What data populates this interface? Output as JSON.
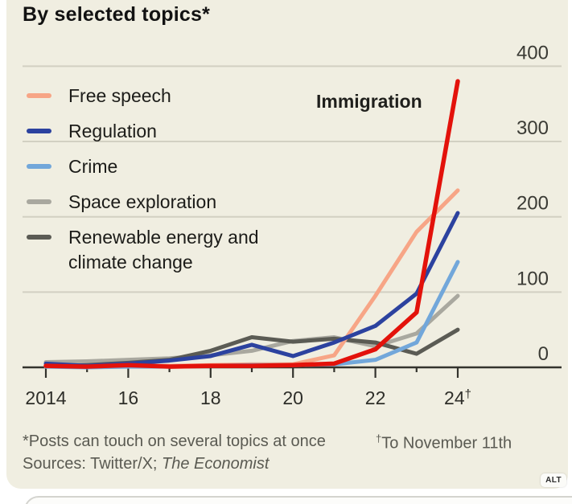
{
  "header": {
    "title": "By selected topics*"
  },
  "alt_badge": {
    "label": "ALT"
  },
  "footnotes": {
    "main": "*Posts can touch on several topics at once",
    "dagger": {
      "sup": "†",
      "text": "To November 11th"
    },
    "sources": {
      "prefix": "Sources: Twitter/X; ",
      "italic": "The Economist"
    }
  },
  "colors": {
    "card_background": "#f0eee1",
    "grid": "#d2d0c2",
    "axis": "#33332d",
    "y_label_text": "#3b3b35",
    "x_label_text": "#2e2e29",
    "accent_red": "#e3120b"
  },
  "chart_data": {
    "type": "line",
    "title": "By selected topics*",
    "xlabel": "",
    "ylabel": "",
    "grid": true,
    "legend_position": "left",
    "ylim": [
      0,
      400
    ],
    "yticks": [
      0,
      100,
      200,
      300,
      400
    ],
    "x": [
      2014,
      2015,
      2016,
      2017,
      2018,
      2019,
      2020,
      2021,
      2022,
      2023,
      2024
    ],
    "x_tick_labels": [
      {
        "year": 2014,
        "label": "2014"
      },
      {
        "year": 2016,
        "label": "16"
      },
      {
        "year": 2018,
        "label": "18"
      },
      {
        "year": 2020,
        "label": "20"
      },
      {
        "year": 2022,
        "label": "22"
      },
      {
        "year": 2024,
        "label": "24",
        "sup": "†"
      }
    ],
    "annotations": [
      {
        "text": "Immigration",
        "series": "Immigration"
      }
    ],
    "series": [
      {
        "name": "Free speech",
        "color": "#f7a586",
        "values": [
          1,
          1,
          2,
          2,
          3,
          4,
          4,
          16,
          95,
          180,
          235
        ]
      },
      {
        "name": "Regulation",
        "color": "#2c429f",
        "values": [
          5,
          2,
          5,
          9,
          15,
          30,
          15,
          33,
          55,
          98,
          205
        ]
      },
      {
        "name": "Crime",
        "color": "#72a7da",
        "values": [
          1,
          0,
          1,
          1,
          2,
          3,
          3,
          4,
          10,
          33,
          140
        ]
      },
      {
        "name": "Space exploration",
        "color": "#a9a89f",
        "values": [
          7,
          8,
          10,
          12,
          16,
          22,
          35,
          40,
          28,
          45,
          95
        ]
      },
      {
        "name": "Renewable energy and climate change",
        "color": "#5b5b54",
        "values": [
          1,
          3,
          6,
          10,
          22,
          40,
          34,
          38,
          33,
          18,
          50
        ]
      },
      {
        "name": "Immigration",
        "color": "#e3120b",
        "values": [
          2,
          1,
          3,
          1,
          2,
          2,
          3,
          5,
          24,
          73,
          380
        ]
      }
    ]
  }
}
